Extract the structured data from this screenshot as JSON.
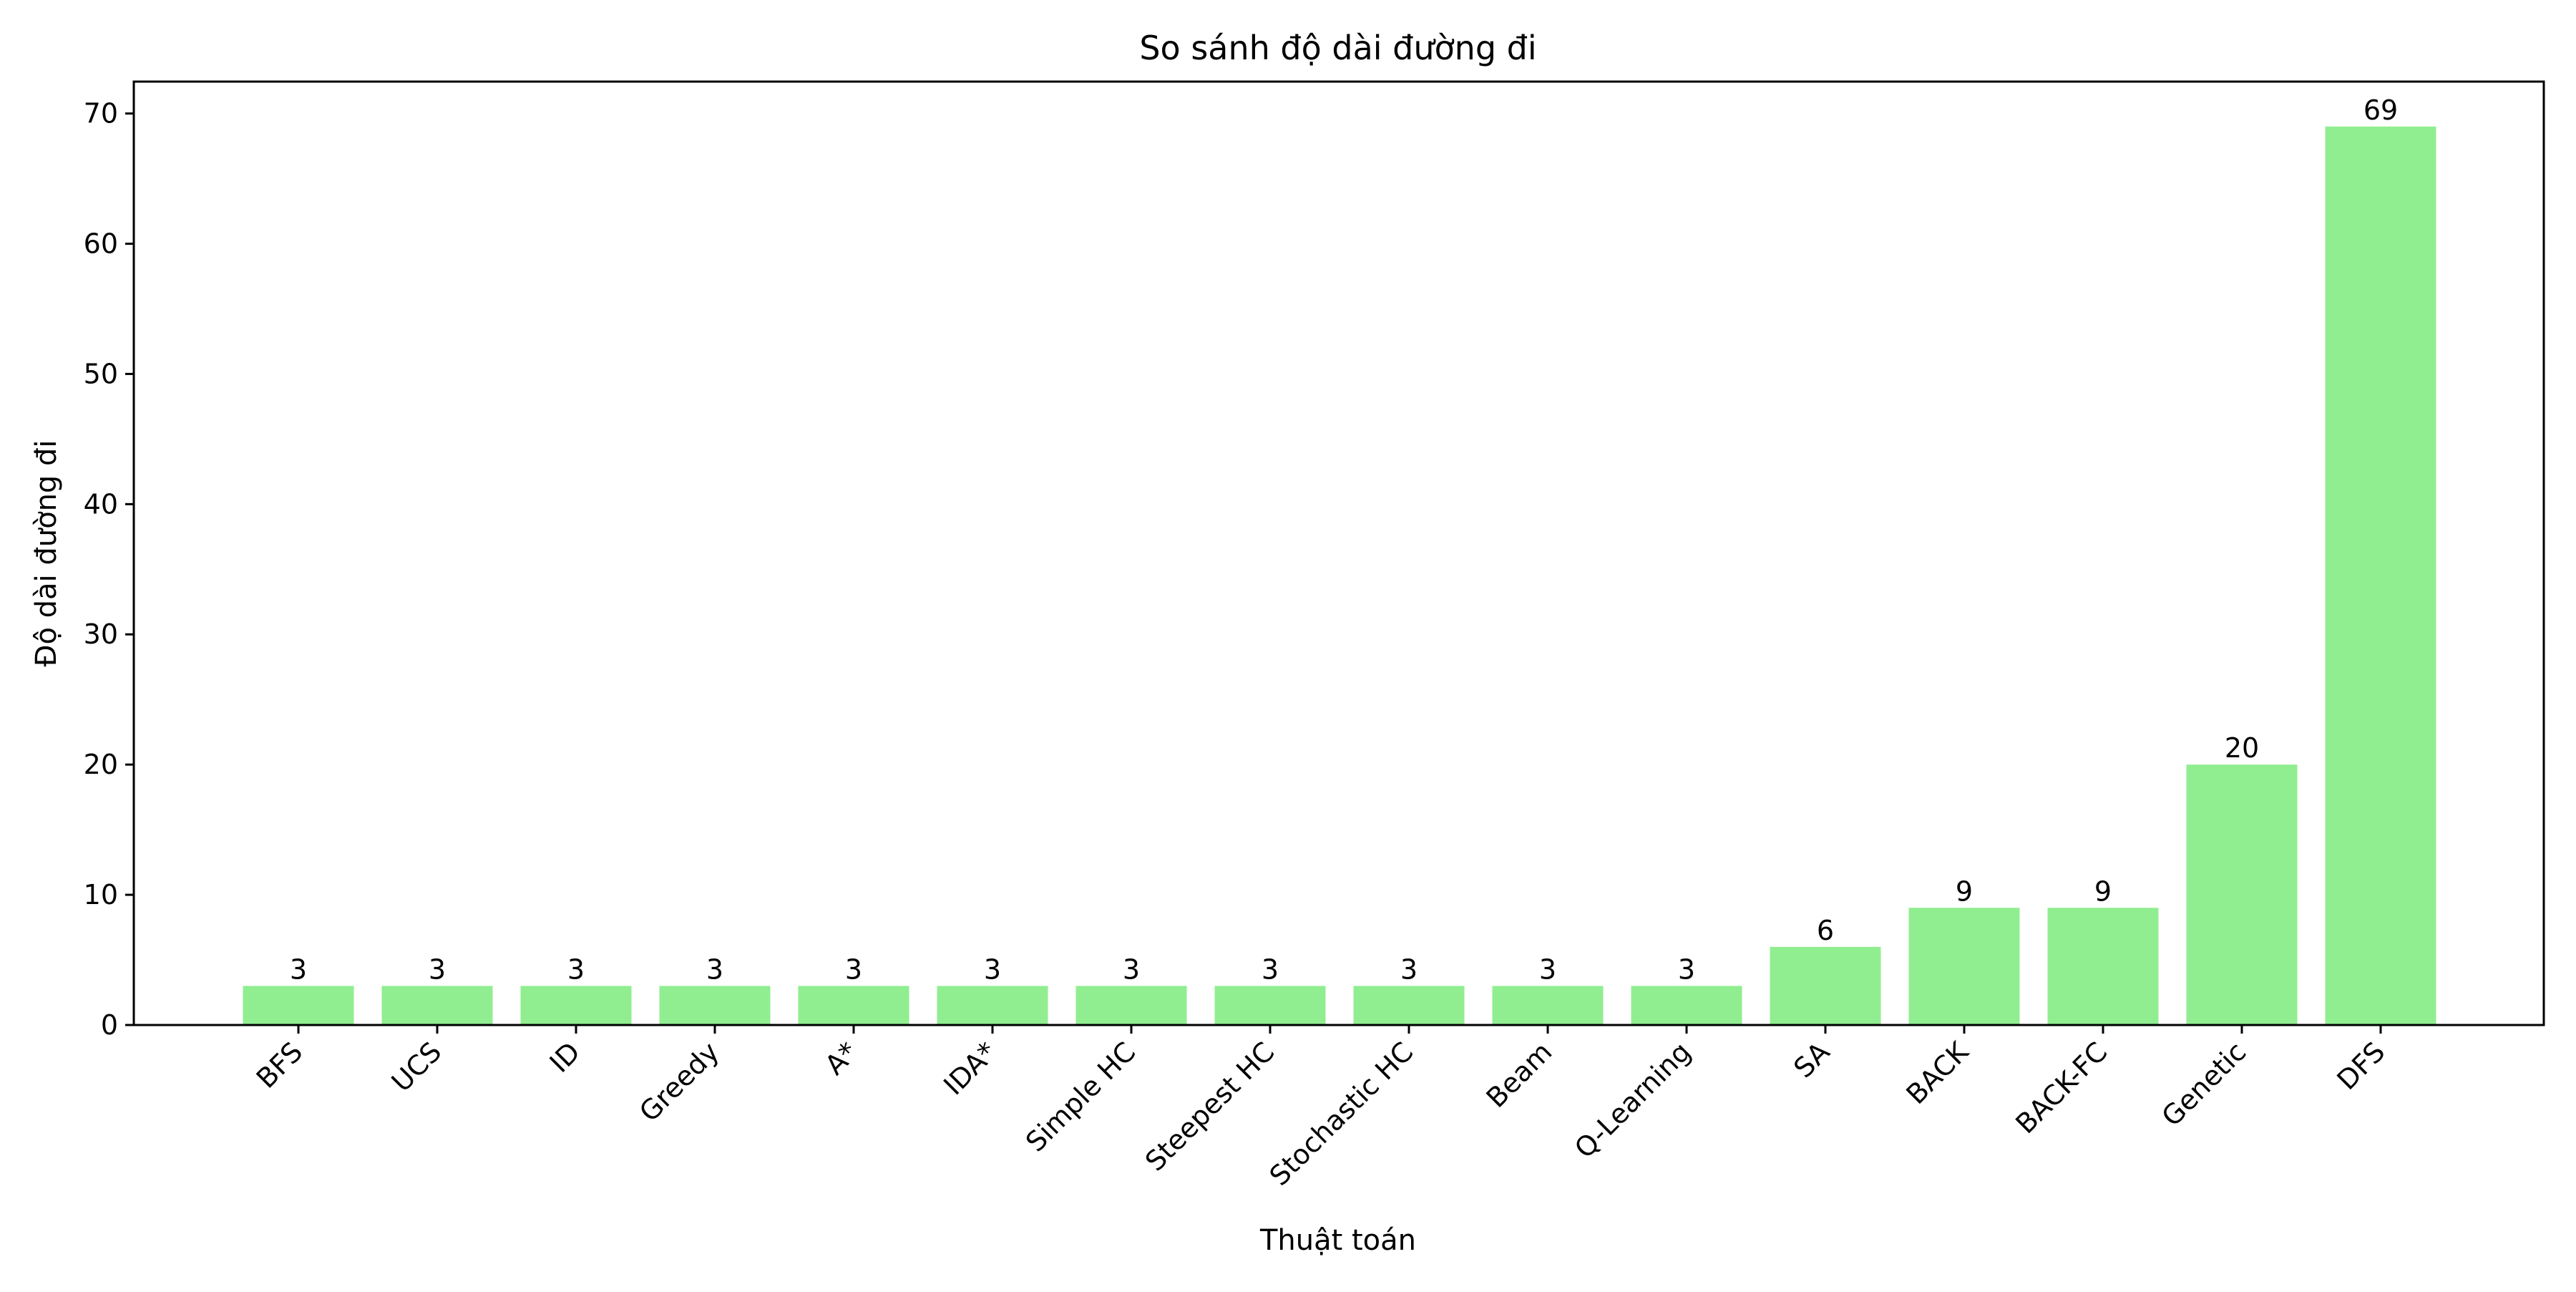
{
  "chart_data": {
    "type": "bar",
    "title": "So sánh độ dài đường đi",
    "xlabel": "Thuật toán",
    "ylabel": "Độ dài đường đi",
    "categories": [
      "BFS",
      "UCS",
      "ID",
      "Greedy",
      "A*",
      "IDA*",
      "Simple HC",
      "Steepest HC",
      "Stochastic HC",
      "Beam",
      "Q-Learning",
      "SA",
      "BACK",
      "BACK-FC",
      "Genetic",
      "DFS"
    ],
    "values": [
      3,
      3,
      3,
      3,
      3,
      3,
      3,
      3,
      3,
      3,
      3,
      6,
      9,
      9,
      20,
      69
    ],
    "yticks": [
      "0",
      "10",
      "20",
      "30",
      "40",
      "50",
      "60",
      "70"
    ],
    "ylim": [
      0,
      72.45
    ],
    "grid": false,
    "legend": "none",
    "bar_color": "#90ee90"
  }
}
